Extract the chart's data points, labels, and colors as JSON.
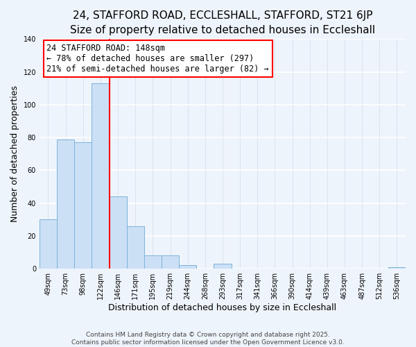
{
  "title": "24, STAFFORD ROAD, ECCLESHALL, STAFFORD, ST21 6JP",
  "subtitle": "Size of property relative to detached houses in Eccleshall",
  "xlabel": "Distribution of detached houses by size in Eccleshall",
  "ylabel": "Number of detached properties",
  "bin_labels": [
    "49sqm",
    "73sqm",
    "98sqm",
    "122sqm",
    "146sqm",
    "171sqm",
    "195sqm",
    "219sqm",
    "244sqm",
    "268sqm",
    "293sqm",
    "317sqm",
    "341sqm",
    "366sqm",
    "390sqm",
    "414sqm",
    "439sqm",
    "463sqm",
    "487sqm",
    "512sqm",
    "536sqm"
  ],
  "bar_heights": [
    30,
    79,
    77,
    113,
    44,
    26,
    8,
    8,
    2,
    0,
    3,
    0,
    0,
    0,
    0,
    0,
    0,
    0,
    0,
    0,
    1
  ],
  "bar_color": "#cce0f5",
  "bar_edge_color": "#7ab3d9",
  "vline_x_index": 3,
  "vline_color": "red",
  "annotation_title": "24 STAFFORD ROAD: 148sqm",
  "annotation_line1": "← 78% of detached houses are smaller (297)",
  "annotation_line2": "21% of semi-detached houses are larger (82) →",
  "annotation_box_color": "white",
  "annotation_box_edge": "red",
  "ylim": [
    0,
    140
  ],
  "yticks": [
    0,
    20,
    40,
    60,
    80,
    100,
    120,
    140
  ],
  "background_color": "#eef4fb",
  "grid_color": "#d0dce8",
  "footer_line1": "Contains HM Land Registry data © Crown copyright and database right 2025.",
  "footer_line2": "Contains public sector information licensed under the Open Government Licence v3.0.",
  "title_fontsize": 11,
  "subtitle_fontsize": 9.5,
  "xlabel_fontsize": 9,
  "ylabel_fontsize": 9,
  "tick_fontsize": 7,
  "annotation_fontsize": 8.5,
  "footer_fontsize": 6.5
}
